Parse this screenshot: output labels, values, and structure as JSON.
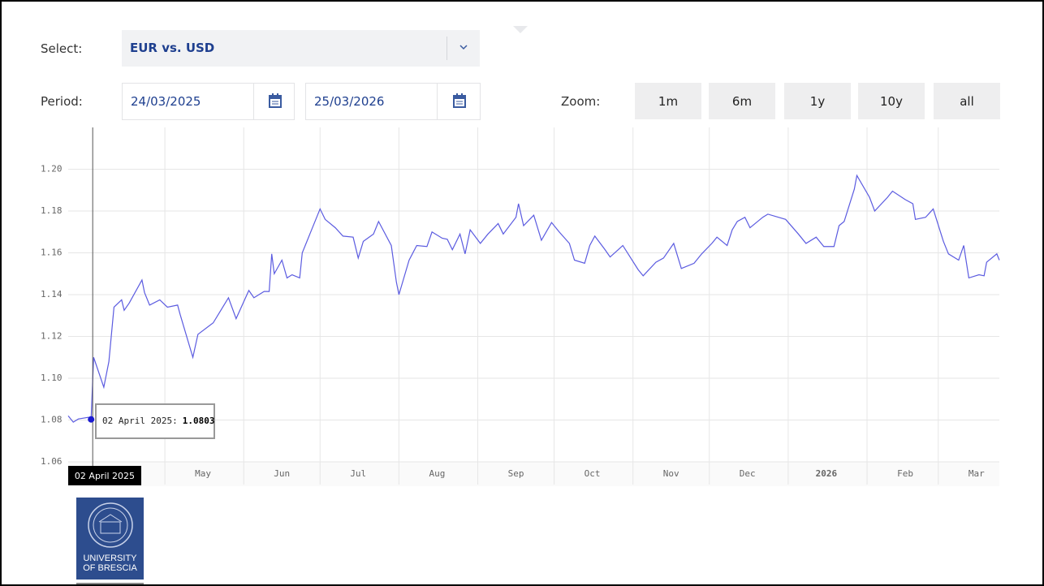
{
  "ui": {
    "select_label": "Select:",
    "select_value": "EUR vs. USD",
    "period_label": "Period:",
    "date_from": "24/03/2025",
    "date_to": "25/03/2026",
    "zoom_label": "Zoom:",
    "zoom_buttons": [
      "1m",
      "6m",
      "1y",
      "10y",
      "all"
    ],
    "logo": [
      "UNIVERSITY",
      "OF BRESCIA"
    ]
  },
  "chart_data": {
    "type": "line",
    "x": [
      "2025-03-24",
      "2025-03-26",
      "2025-03-28",
      "2025-04-01",
      "2025-04-02",
      "2025-04-03",
      "2025-04-07",
      "2025-04-09",
      "2025-04-11",
      "2025-04-14",
      "2025-04-15",
      "2025-04-17",
      "2025-04-22",
      "2025-04-23",
      "2025-04-25",
      "2025-04-29",
      "2025-05-02",
      "2025-05-06",
      "2025-05-07",
      "2025-05-12",
      "2025-05-14",
      "2025-05-20",
      "2025-05-22",
      "2025-05-26",
      "2025-05-29",
      "2025-06-03",
      "2025-06-05",
      "2025-06-09",
      "2025-06-11",
      "2025-06-12",
      "2025-06-13",
      "2025-06-16",
      "2025-06-18",
      "2025-06-20",
      "2025-06-23",
      "2025-06-24",
      "2025-06-27",
      "2025-07-01",
      "2025-07-03",
      "2025-07-07",
      "2025-07-10",
      "2025-07-14",
      "2025-07-16",
      "2025-07-18",
      "2025-07-22",
      "2025-07-24",
      "2025-07-29",
      "2025-07-31",
      "2025-08-01",
      "2025-08-05",
      "2025-08-08",
      "2025-08-12",
      "2025-08-14",
      "2025-08-18",
      "2025-08-20",
      "2025-08-22",
      "2025-08-25",
      "2025-08-27",
      "2025-08-29",
      "2025-09-02",
      "2025-09-05",
      "2025-09-09",
      "2025-09-11",
      "2025-09-16",
      "2025-09-17",
      "2025-09-19",
      "2025-09-23",
      "2025-09-26",
      "2025-09-30",
      "2025-10-03",
      "2025-10-07",
      "2025-10-09",
      "2025-10-13",
      "2025-10-15",
      "2025-10-17",
      "2025-10-21",
      "2025-10-23",
      "2025-10-28",
      "2025-11-03",
      "2025-11-05",
      "2025-11-10",
      "2025-11-13",
      "2025-11-17",
      "2025-11-20",
      "2025-11-25",
      "2025-11-28",
      "2025-12-02",
      "2025-12-04",
      "2025-12-08",
      "2025-12-10",
      "2025-12-12",
      "2025-12-15",
      "2025-12-17",
      "2025-12-22",
      "2025-12-24",
      "2025-12-31",
      "2026-01-05",
      "2026-01-08",
      "2026-01-12",
      "2026-01-15",
      "2026-01-19",
      "2026-01-21",
      "2026-01-23",
      "2026-01-27",
      "2026-01-28",
      "2026-02-02",
      "2026-02-04",
      "2026-02-09",
      "2026-02-11",
      "2026-02-16",
      "2026-02-19",
      "2026-02-20",
      "2026-02-24",
      "2026-02-27",
      "2026-03-03",
      "2026-03-05",
      "2026-03-09",
      "2026-03-11",
      "2026-03-13",
      "2026-03-17",
      "2026-03-19",
      "2026-03-20",
      "2026-03-24",
      "2026-03-25"
    ],
    "series": [
      {
        "color": "#5b5be0",
        "values": [
          1.082,
          1.079,
          1.0805,
          1.0813,
          1.0803,
          1.11,
          1.0957,
          1.108,
          1.134,
          1.1375,
          1.1325,
          1.136,
          1.147,
          1.141,
          1.135,
          1.1375,
          1.134,
          1.135,
          1.1305,
          1.11,
          1.121,
          1.1265,
          1.1305,
          1.1385,
          1.1285,
          1.142,
          1.1385,
          1.1415,
          1.1415,
          1.1595,
          1.15,
          1.1565,
          1.148,
          1.1495,
          1.148,
          1.16,
          1.169,
          1.181,
          1.176,
          1.172,
          1.168,
          1.1675,
          1.1575,
          1.1655,
          1.169,
          1.175,
          1.1635,
          1.146,
          1.14,
          1.1565,
          1.1635,
          1.163,
          1.17,
          1.167,
          1.1665,
          1.1615,
          1.169,
          1.1595,
          1.171,
          1.1645,
          1.169,
          1.174,
          1.169,
          1.177,
          1.1835,
          1.173,
          1.178,
          1.166,
          1.1745,
          1.17,
          1.1645,
          1.1565,
          1.155,
          1.1635,
          1.168,
          1.1615,
          1.158,
          1.1635,
          1.152,
          1.149,
          1.1555,
          1.1575,
          1.1645,
          1.1525,
          1.155,
          1.1595,
          1.1645,
          1.1675,
          1.1635,
          1.171,
          1.175,
          1.177,
          1.172,
          1.177,
          1.1785,
          1.176,
          1.169,
          1.1645,
          1.1675,
          1.163,
          1.163,
          1.173,
          1.175,
          1.1905,
          1.197,
          1.1865,
          1.18,
          1.1865,
          1.1895,
          1.1855,
          1.1835,
          1.176,
          1.177,
          1.181,
          1.1655,
          1.1595,
          1.1565,
          1.1635,
          1.148,
          1.1495,
          1.149,
          1.1555,
          1.1595,
          1.1565
        ]
      }
    ],
    "xlim": [
      "2025-03-24",
      "2026-03-25"
    ],
    "xticks": [
      {
        "value": "2025-05-01",
        "label": "May"
      },
      {
        "value": "2025-06-01",
        "label": "Jun"
      },
      {
        "value": "2025-07-01",
        "label": "Jul"
      },
      {
        "value": "2025-08-01",
        "label": "Aug"
      },
      {
        "value": "2025-09-01",
        "label": "Sep"
      },
      {
        "value": "2025-10-01",
        "label": "Oct"
      },
      {
        "value": "2025-11-01",
        "label": "Nov"
      },
      {
        "value": "2025-12-01",
        "label": "Dec"
      },
      {
        "value": "2026-01-01",
        "label": "2026"
      },
      {
        "value": "2026-02-01",
        "label": "Feb"
      },
      {
        "value": "2026-03-01",
        "label": "Mar"
      }
    ],
    "ylim": [
      1.06,
      1.22
    ],
    "yticks": [
      1.06,
      1.08,
      {
        "value": 1.1,
        "label": "1.10"
      },
      1.12,
      1.14,
      1.16,
      1.18,
      {
        "value": 1.2,
        "label": "1.20"
      }
    ],
    "grid": true,
    "crosshair": {
      "index": 4,
      "x_label": "02 April 2025",
      "tooltip_label": "02 April 2025:"
    }
  }
}
